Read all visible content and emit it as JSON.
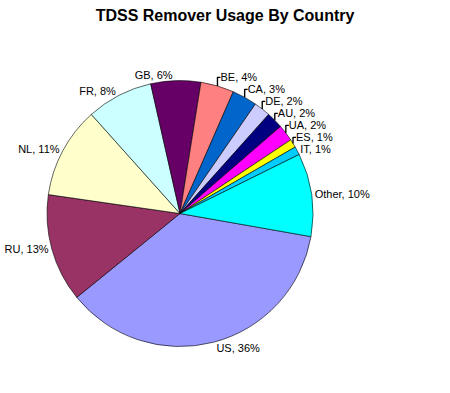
{
  "chart_data": {
    "type": "pie",
    "title": "TDSS Remover Usage By Country",
    "categories": [
      "US",
      "RU",
      "NL",
      "FR",
      "GB",
      "BE",
      "CA",
      "DE",
      "AU",
      "UA",
      "ES",
      "IT",
      "Other"
    ],
    "values": [
      36,
      13,
      11,
      8,
      6,
      4,
      3,
      2,
      2,
      2,
      1,
      1,
      10
    ],
    "value_labels": [
      "US, 36%",
      "RU, 13%",
      "NL, 11%",
      "FR, 8%",
      "GB, 6%",
      "BE, 4%",
      "CA, 3%",
      "DE, 2%",
      "AU, 2%",
      "UA, 2%",
      "ES, 1%",
      "IT, 1%",
      "Other, 10%"
    ],
    "colors": [
      "#9999ff",
      "#993366",
      "#ffffcc",
      "#ccffff",
      "#660066",
      "#ff8080",
      "#0066cc",
      "#ccccff",
      "#000080",
      "#ff00ff",
      "#ffff00",
      "#00ccff",
      "#00ffff"
    ],
    "data_labels": true
  }
}
